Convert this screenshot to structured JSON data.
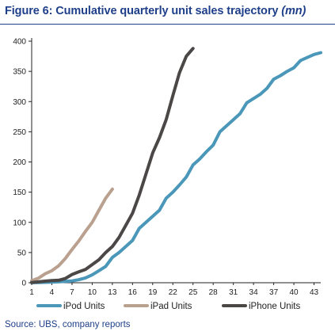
{
  "figure": {
    "title": "Figure 6: Cumulative quarterly unit sales trajectory",
    "units": "(mn)",
    "source": "Source: UBS, company reports"
  },
  "chart_data": {
    "type": "line",
    "title": "Figure 6: Cumulative quarterly unit sales trajectory (mn)",
    "xlabel": "",
    "ylabel": "",
    "xlim": [
      1,
      44
    ],
    "ylim": [
      0,
      400
    ],
    "x_ticks": [
      1,
      4,
      7,
      10,
      13,
      16,
      19,
      22,
      25,
      28,
      31,
      34,
      37,
      40,
      43
    ],
    "y_ticks": [
      0,
      50,
      100,
      150,
      200,
      250,
      300,
      350,
      400
    ],
    "grid": false,
    "legend_position": "bottom",
    "series": [
      {
        "name": "iPod Units",
        "color": "#4a97b9",
        "x": [
          1,
          2,
          3,
          4,
          5,
          6,
          7,
          8,
          9,
          10,
          11,
          12,
          13,
          14,
          15,
          16,
          17,
          18,
          19,
          20,
          21,
          22,
          23,
          24,
          25,
          26,
          27,
          28,
          29,
          30,
          31,
          32,
          33,
          34,
          35,
          36,
          37,
          38,
          39,
          40,
          41,
          42,
          43,
          44
        ],
        "values": [
          0.1,
          0.3,
          0.6,
          1,
          1.5,
          2.3,
          3,
          5,
          8,
          13,
          20,
          27,
          42,
          50,
          60,
          70,
          90,
          100,
          110,
          120,
          140,
          150,
          162,
          175,
          195,
          205,
          217,
          228,
          250,
          260,
          270,
          280,
          298,
          305,
          312,
          322,
          337,
          343,
          350,
          356,
          368,
          373,
          378,
          381
        ]
      },
      {
        "name": "iPad Units",
        "color": "#b9a08f",
        "x": [
          1,
          2,
          3,
          4,
          5,
          6,
          7,
          8,
          9,
          10,
          11,
          12,
          13
        ],
        "values": [
          3.3,
          7.5,
          14.8,
          19.9,
          28,
          40,
          55,
          69,
          85,
          100,
          120,
          140,
          155
        ]
      },
      {
        "name": "iPhone Units",
        "color": "#4b4746",
        "x": [
          1,
          2,
          3,
          4,
          5,
          6,
          7,
          8,
          9,
          10,
          11,
          12,
          13,
          14,
          15,
          16,
          17,
          18,
          19,
          20,
          21,
          22,
          23,
          24,
          25
        ],
        "values": [
          0.3,
          1.5,
          2.6,
          3.7,
          4.1,
          7,
          13.7,
          18,
          22,
          30,
          38,
          50,
          60,
          75,
          95,
          115,
          145,
          180,
          215,
          240,
          270,
          310,
          348,
          375,
          388
        ]
      }
    ]
  }
}
